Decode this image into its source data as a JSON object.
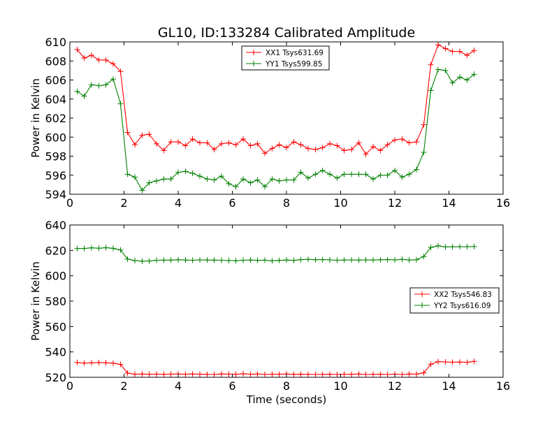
{
  "figure": {
    "title": "GL10, ID:133284 Calibrated Amplitude"
  },
  "chart_data": [
    {
      "type": "line",
      "title": "GL10, ID:133284 Calibrated Amplitude",
      "xlabel": "",
      "ylabel": "Power in Kelvin",
      "xlim": [
        0,
        16
      ],
      "ylim": [
        594,
        610
      ],
      "xticks": [
        0,
        2,
        4,
        6,
        8,
        10,
        12,
        14,
        16
      ],
      "yticks": [
        594,
        596,
        598,
        600,
        602,
        604,
        606,
        608,
        610
      ],
      "grid": false,
      "legend_position": "top-center",
      "x": [
        0.27,
        0.53,
        0.8,
        1.07,
        1.33,
        1.6,
        1.87,
        2.13,
        2.4,
        2.67,
        2.93,
        3.2,
        3.47,
        3.73,
        4.0,
        4.27,
        4.53,
        4.8,
        5.07,
        5.33,
        5.6,
        5.87,
        6.13,
        6.4,
        6.67,
        6.93,
        7.2,
        7.47,
        7.73,
        8.0,
        8.27,
        8.53,
        8.8,
        9.07,
        9.33,
        9.6,
        9.87,
        10.13,
        10.4,
        10.67,
        10.93,
        11.2,
        11.47,
        11.73,
        12.0,
        12.27,
        12.53,
        12.8,
        13.07,
        13.33,
        13.6,
        13.87,
        14.13,
        14.4,
        14.67,
        14.93
      ],
      "series": [
        {
          "name": "XX1 Tsys631.69",
          "color": "#ff0000",
          "values": [
            609.2,
            608.3,
            608.6,
            608.1,
            608.1,
            607.7,
            606.9,
            600.5,
            599.2,
            600.2,
            600.3,
            599.3,
            598.6,
            599.5,
            599.5,
            599.1,
            599.8,
            599.4,
            599.4,
            598.7,
            599.3,
            599.4,
            599.2,
            599.8,
            599.1,
            599.3,
            598.3,
            598.8,
            599.2,
            598.9,
            599.5,
            599.2,
            598.8,
            598.7,
            598.9,
            599.3,
            599.1,
            598.6,
            598.7,
            599.4,
            598.2,
            599.0,
            598.6,
            599.2,
            599.7,
            599.8,
            599.4,
            599.5,
            601.3,
            607.6,
            609.7,
            609.3,
            609.0,
            609.0,
            608.6,
            609.1
          ]
        },
        {
          "name": "YY1 Tsys599.85",
          "color": "#008000",
          "values": [
            604.8,
            604.3,
            605.5,
            605.4,
            605.5,
            606.1,
            603.5,
            596.1,
            595.8,
            594.4,
            595.2,
            595.4,
            595.6,
            595.6,
            596.3,
            596.4,
            596.2,
            595.9,
            595.6,
            595.5,
            595.9,
            595.1,
            594.8,
            595.6,
            595.2,
            595.5,
            594.8,
            595.6,
            595.4,
            595.5,
            595.5,
            596.3,
            595.7,
            596.1,
            596.5,
            596.1,
            595.7,
            596.1,
            596.1,
            596.1,
            596.1,
            595.6,
            596.0,
            596.0,
            596.5,
            595.8,
            596.1,
            596.6,
            598.4,
            604.9,
            607.1,
            607.0,
            605.7,
            606.3,
            606.0,
            606.6
          ]
        }
      ]
    },
    {
      "type": "line",
      "title": "",
      "xlabel": "Time (seconds)",
      "ylabel": "Power in Kelvin",
      "xlim": [
        0,
        16
      ],
      "ylim": [
        520,
        640
      ],
      "xticks": [
        0,
        2,
        4,
        6,
        8,
        10,
        12,
        14,
        16
      ],
      "yticks": [
        520,
        540,
        560,
        580,
        600,
        620,
        640
      ],
      "grid": false,
      "legend_position": "center-right",
      "x": [
        0.27,
        0.53,
        0.8,
        1.07,
        1.33,
        1.6,
        1.87,
        2.13,
        2.4,
        2.67,
        2.93,
        3.2,
        3.47,
        3.73,
        4.0,
        4.27,
        4.53,
        4.8,
        5.07,
        5.33,
        5.6,
        5.87,
        6.13,
        6.4,
        6.67,
        6.93,
        7.2,
        7.47,
        7.73,
        8.0,
        8.27,
        8.53,
        8.8,
        9.07,
        9.33,
        9.6,
        9.87,
        10.13,
        10.4,
        10.67,
        10.93,
        11.2,
        11.47,
        11.73,
        12.0,
        12.27,
        12.53,
        12.8,
        13.07,
        13.33,
        13.6,
        13.87,
        14.13,
        14.4,
        14.67,
        14.93
      ],
      "series": [
        {
          "name": "XX2 Tsys546.83",
          "color": "#ff0000",
          "values": [
            531.6,
            531.2,
            531.4,
            531.6,
            531.4,
            531.1,
            530.2,
            523.3,
            522.4,
            522.6,
            522.4,
            522.5,
            522.4,
            522.5,
            522.6,
            522.4,
            522.6,
            522.4,
            522.3,
            522.2,
            522.6,
            522.5,
            522.4,
            522.8,
            522.4,
            522.6,
            522.2,
            522.5,
            522.4,
            522.6,
            522.3,
            522.4,
            522.3,
            522.2,
            522.3,
            522.4,
            522.2,
            522.5,
            522.3,
            522.6,
            522.2,
            522.3,
            522.4,
            522.2,
            522.5,
            522.2,
            522.6,
            522.5,
            523.5,
            530.3,
            532.3,
            532.1,
            531.9,
            532.0,
            531.8,
            532.5
          ]
        },
        {
          "name": "YY2 Tsys616.09",
          "color": "#008000",
          "values": [
            621.4,
            621.5,
            622.0,
            621.7,
            622.1,
            621.6,
            620.3,
            613.1,
            611.9,
            611.5,
            611.6,
            612.2,
            612.3,
            612.3,
            612.6,
            612.4,
            612.2,
            612.5,
            612.4,
            612.3,
            612.2,
            612.0,
            611.8,
            612.2,
            612.4,
            612.1,
            612.3,
            611.7,
            612.1,
            612.4,
            612.1,
            612.7,
            612.9,
            612.6,
            612.7,
            612.5,
            612.2,
            612.4,
            612.5,
            612.3,
            612.5,
            612.4,
            612.6,
            612.7,
            612.5,
            612.9,
            612.4,
            612.6,
            615.1,
            622.3,
            623.6,
            622.7,
            622.8,
            622.9,
            622.9,
            623.0
          ]
        }
      ]
    }
  ]
}
